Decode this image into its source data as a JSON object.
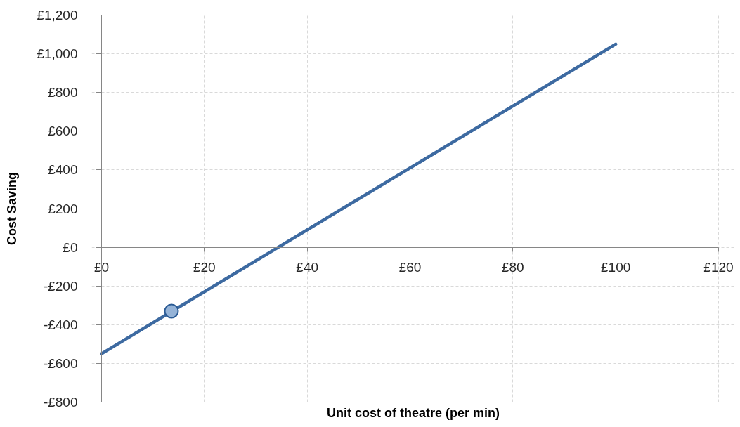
{
  "chart_data": {
    "type": "line",
    "xlabel": "Unit cost of theatre (per min)",
    "ylabel": "Cost Saving",
    "xlim": [
      0,
      120
    ],
    "ylim": [
      -800,
      1200
    ],
    "xticks": [
      {
        "value": 0,
        "label": "£0"
      },
      {
        "value": 20,
        "label": "£20"
      },
      {
        "value": 40,
        "label": "£40"
      },
      {
        "value": 60,
        "label": "£60"
      },
      {
        "value": 80,
        "label": "£80"
      },
      {
        "value": 100,
        "label": "£100"
      },
      {
        "value": 120,
        "label": "£120"
      }
    ],
    "yticks": [
      {
        "value": -800,
        "label": "-£800"
      },
      {
        "value": -600,
        "label": "-£600"
      },
      {
        "value": -400,
        "label": "-£400"
      },
      {
        "value": -200,
        "label": "-£200"
      },
      {
        "value": 0,
        "label": "£0"
      },
      {
        "value": 200,
        "label": "£200"
      },
      {
        "value": 400,
        "label": "£400"
      },
      {
        "value": 600,
        "label": "£600"
      },
      {
        "value": 800,
        "label": "£800"
      },
      {
        "value": 1000,
        "label": "£1,000"
      },
      {
        "value": 1200,
        "label": "£1,200"
      }
    ],
    "grid": true,
    "line_style": "solid",
    "series": [
      {
        "type": "line",
        "color": "#3d6aa1",
        "x": [
          0,
          100
        ],
        "values": [
          -550,
          1050
        ]
      },
      {
        "type": "scatter",
        "color": "#95b3d7",
        "marker": "circle",
        "x": [
          13.6
        ],
        "values": [
          -330
        ]
      }
    ]
  }
}
